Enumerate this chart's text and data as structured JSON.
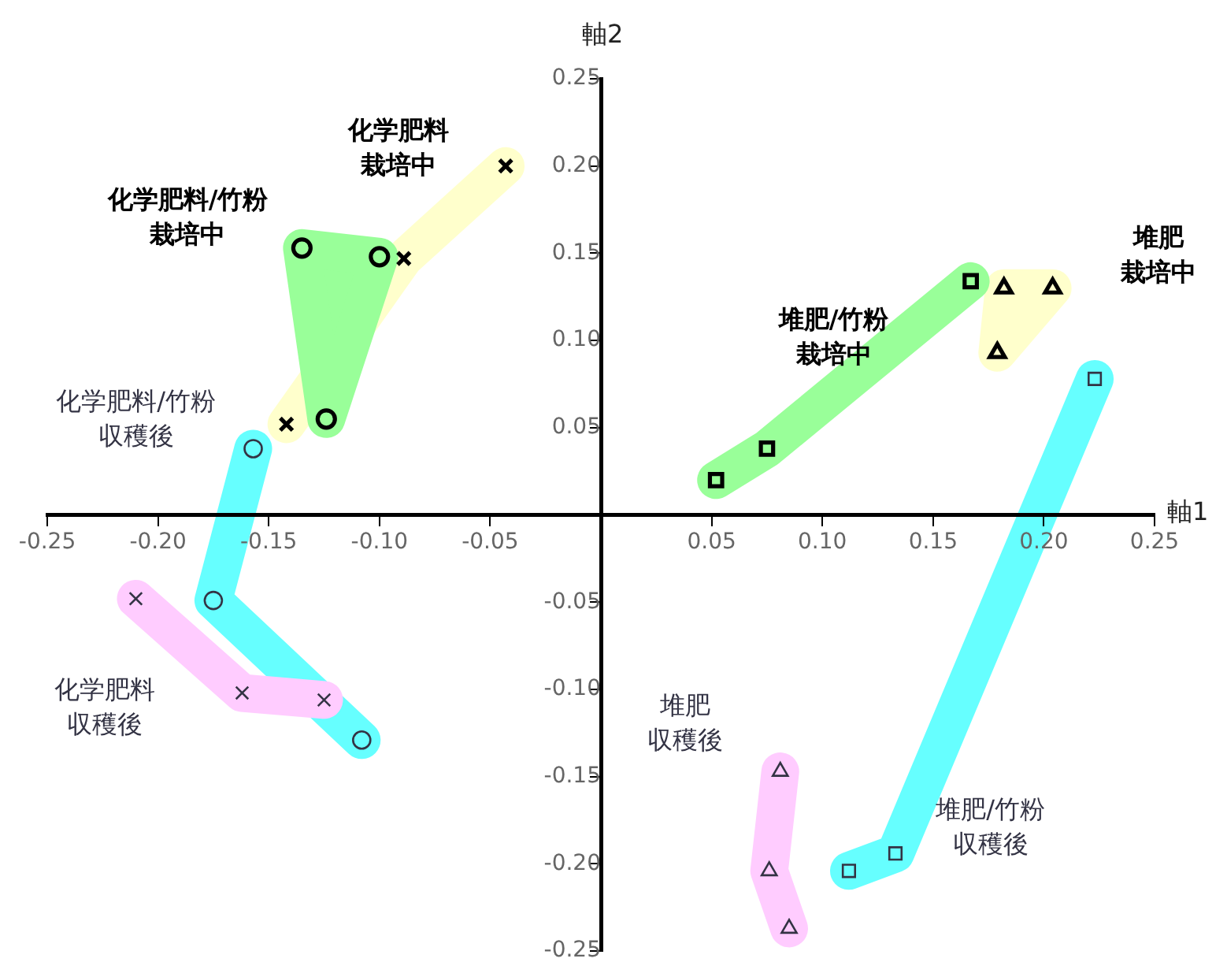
{
  "chart_data": {
    "type": "scatter",
    "xlabel": "軸1",
    "ylabel": "軸2",
    "xlim": [
      -0.25,
      0.25
    ],
    "ylim": [
      -0.25,
      0.25
    ],
    "xticks": [
      -0.25,
      {
        "value": -0.2,
        "label": "-0.20"
      },
      -0.15,
      {
        "value": -0.1,
        "label": "-0.10"
      },
      -0.05,
      {
        "value": 0,
        "label": null
      },
      0.05,
      {
        "value": 0.1,
        "label": "0.10"
      },
      0.15,
      {
        "value": 0.2,
        "label": "0.20"
      },
      0.25
    ],
    "yticks": [
      -0.25,
      {
        "value": -0.2,
        "label": "-0.20"
      },
      -0.15,
      {
        "value": -0.1,
        "label": "-0.10"
      },
      -0.05,
      {
        "value": 0,
        "label": null
      },
      0.05,
      {
        "value": 0.1,
        "label": "0.10"
      },
      0.15,
      {
        "value": 0.2,
        "label": "0.20"
      },
      0.25
    ],
    "grid": false,
    "legend": false,
    "series": [
      {
        "name": "化学肥料栽培中",
        "color": "#000000",
        "marker": "cross",
        "x": [
          -0.142,
          -0.089,
          -0.043
        ],
        "values": [
          0.052,
          0.147,
          0.2
        ]
      },
      {
        "name": "化学肥料/竹粉栽培中",
        "color": "#000000",
        "marker": "circle",
        "x": [
          -0.135,
          -0.1,
          -0.124
        ],
        "values": [
          0.153,
          0.148,
          0.055
        ]
      },
      {
        "name": "化学肥料/竹粉収穫後",
        "color": "#333344",
        "marker": "circle",
        "x": [
          -0.157,
          -0.175,
          -0.108
        ],
        "values": [
          0.038,
          -0.049,
          -0.129
        ]
      },
      {
        "name": "化学肥料収穫後",
        "color": "#333344",
        "marker": "cross",
        "x": [
          -0.21,
          -0.162,
          -0.125
        ],
        "values": [
          -0.048,
          -0.102,
          -0.106
        ]
      },
      {
        "name": "堆肥栽培中",
        "color": "#000000",
        "marker": "triangle",
        "x": [
          0.179,
          0.182,
          0.204
        ],
        "values": [
          0.093,
          0.13,
          0.13
        ]
      },
      {
        "name": "堆肥/竹粉栽培中",
        "color": "#000000",
        "marker": "square",
        "x": [
          0.052,
          0.075,
          0.167
        ],
        "values": [
          0.02,
          0.038,
          0.134
        ]
      },
      {
        "name": "堆肥/竹粉収穫後",
        "color": "#333344",
        "marker": "square",
        "x": [
          0.112,
          0.133,
          0.223
        ],
        "values": [
          -0.204,
          -0.194,
          0.078
        ]
      },
      {
        "name": "堆肥収穫後",
        "color": "#333344",
        "marker": "triangle",
        "x": [
          0.081,
          0.076,
          0.085
        ],
        "values": [
          -0.147,
          -0.204,
          -0.237
        ]
      }
    ]
  }
}
